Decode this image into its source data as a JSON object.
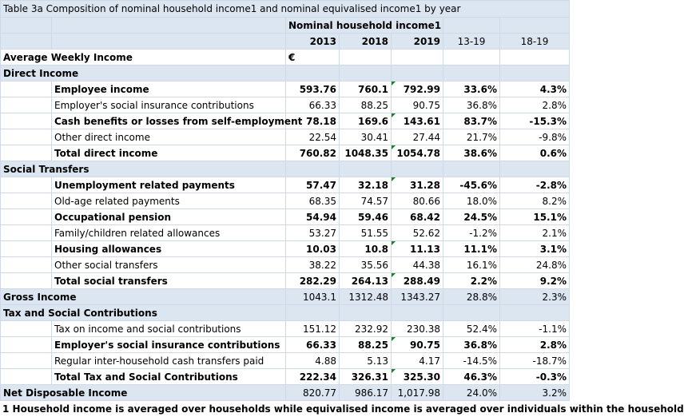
{
  "title": "Table 3a Composition of nominal household income1 and nominal equivalised income1 by year",
  "header": {
    "group_label": "Nominal household income1",
    "years": [
      "2013",
      "2018",
      "2019"
    ],
    "changes": [
      "13-19",
      "18-19"
    ]
  },
  "units_row": {
    "label": "Average Weekly Income",
    "unit": "€"
  },
  "rows": [
    {
      "label": "Direct Income",
      "section": true
    },
    {
      "label": "Employee income",
      "indent": true,
      "bold": true,
      "v": [
        "593.76",
        "760.1",
        "792.99",
        "33.6%",
        "4.3%"
      ]
    },
    {
      "label": "Employer's social insurance contributions",
      "indent": true,
      "v": [
        "66.33",
        "88.25",
        "90.75",
        "36.8%",
        "2.8%"
      ]
    },
    {
      "label": "Cash benefits or losses from self-employment",
      "indent": true,
      "bold": true,
      "v": [
        "78.18",
        "169.6",
        "143.61",
        "83.7%",
        "-15.3%"
      ]
    },
    {
      "label": "Other direct income",
      "indent": true,
      "v": [
        "22.54",
        "30.41",
        "27.44",
        "21.7%",
        "-9.8%"
      ]
    },
    {
      "label": "Total direct income",
      "indent": true,
      "bold": true,
      "v": [
        "760.82",
        "1048.35",
        "1054.78",
        "38.6%",
        "0.6%"
      ]
    },
    {
      "label": "Social Transfers",
      "section": true
    },
    {
      "label": "Unemployment related payments",
      "indent": true,
      "bold": true,
      "v": [
        "57.47",
        "32.18",
        "31.28",
        "-45.6%",
        "-2.8%"
      ]
    },
    {
      "label": "Old-age related payments",
      "indent": true,
      "v": [
        "68.35",
        "74.57",
        "80.66",
        "18.0%",
        "8.2%"
      ]
    },
    {
      "label": "Occupational pension",
      "indent": true,
      "bold": true,
      "v": [
        "54.94",
        "59.46",
        "68.42",
        "24.5%",
        "15.1%"
      ]
    },
    {
      "label": "Family/children related allowances",
      "indent": true,
      "v": [
        "53.27",
        "51.55",
        "52.62",
        "-1.2%",
        "2.1%"
      ]
    },
    {
      "label": "Housing allowances",
      "indent": true,
      "bold": true,
      "v": [
        "10.03",
        "10.8",
        "11.13",
        "11.1%",
        "3.1%"
      ]
    },
    {
      "label": "Other social transfers",
      "indent": true,
      "v": [
        "38.22",
        "35.56",
        "44.38",
        "16.1%",
        "24.8%"
      ]
    },
    {
      "label": "Total social transfers",
      "indent": true,
      "bold": true,
      "v": [
        "282.29",
        "264.13",
        "288.49",
        "2.2%",
        "9.2%"
      ]
    },
    {
      "label": "Gross Income",
      "section": true,
      "v": [
        "1043.1",
        "1312.48",
        "1343.27",
        "28.8%",
        "2.3%"
      ]
    },
    {
      "label": "Tax and Social Contributions",
      "section": true
    },
    {
      "label": "Tax on income and social contributions",
      "indent": true,
      "v": [
        "151.12",
        "232.92",
        "230.38",
        "52.4%",
        "-1.1%"
      ]
    },
    {
      "label": "Employer's social insurance contributions",
      "indent": true,
      "bold": true,
      "v": [
        "66.33",
        "88.25",
        "90.75",
        "36.8%",
        "2.8%"
      ]
    },
    {
      "label": "Regular inter-household cash transfers paid",
      "indent": true,
      "v": [
        "4.88",
        "5.13",
        "4.17",
        "-14.5%",
        "-18.7%"
      ]
    },
    {
      "label": "Total Tax and Social Contributions",
      "indent": true,
      "bold": true,
      "v": [
        "222.34",
        "326.31",
        "325.30",
        "46.3%",
        "-0.3%"
      ]
    },
    {
      "label": "Net Disposable Income",
      "section": true,
      "v": [
        "820.77",
        "986.17",
        "1,017.98",
        "24.0%",
        "3.2%"
      ]
    }
  ],
  "footnote": "1 Household income is averaged over households while equivalised income is averaged over individuals within the household"
}
